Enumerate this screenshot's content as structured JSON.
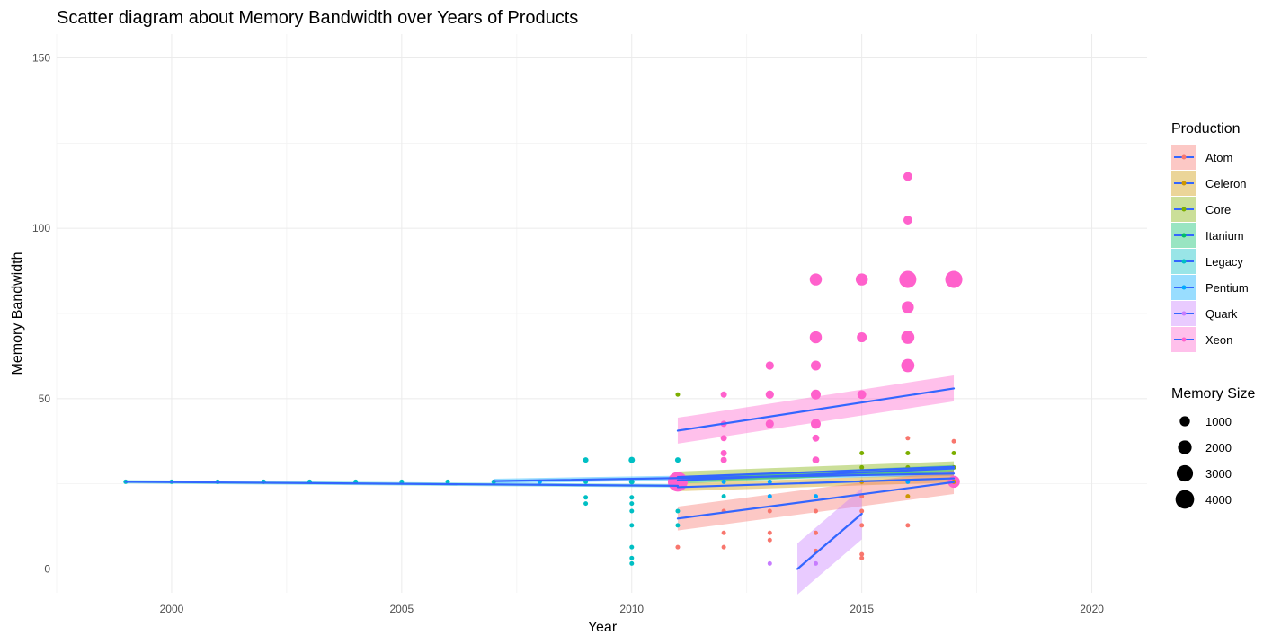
{
  "chart_data": {
    "type": "scatter",
    "title": "Scatter diagram about Memory Bandwidth over Years of Products",
    "xlabel": "Year",
    "ylabel": "Memory Bandwidth",
    "xlim": [
      1997.5,
      2021.2
    ],
    "ylim": [
      -7,
      157
    ],
    "x_ticks": [
      2000,
      2005,
      2010,
      2015,
      2020
    ],
    "y_ticks": [
      0,
      50,
      100,
      150
    ],
    "grid": true,
    "legend_placement": "right",
    "color_legend": {
      "title": "Production",
      "entries": [
        {
          "name": "Atom",
          "color": "#F8766D"
        },
        {
          "name": "Celeron",
          "color": "#CD9600"
        },
        {
          "name": "Core",
          "color": "#7CAE00"
        },
        {
          "name": "Itanium",
          "color": "#00BE67"
        },
        {
          "name": "Legacy",
          "color": "#00BFC4"
        },
        {
          "name": "Pentium",
          "color": "#00A9FF"
        },
        {
          "name": "Quark",
          "color": "#C77CFF"
        },
        {
          "name": "Xeon",
          "color": "#FF61CC"
        }
      ],
      "line_color": "#3366FF"
    },
    "size_legend": {
      "title": "Memory Size",
      "entries": [
        {
          "label": "1000",
          "value": 1000
        },
        {
          "label": "2000",
          "value": 2000
        },
        {
          "label": "3000",
          "value": 3000
        },
        {
          "label": "4000",
          "value": 4000
        }
      ]
    },
    "points": [
      {
        "series": "Legacy",
        "x": 1999,
        "y": 25.6,
        "size": 100
      },
      {
        "series": "Legacy",
        "x": 2000,
        "y": 25.6,
        "size": 100
      },
      {
        "series": "Legacy",
        "x": 2001,
        "y": 25.6,
        "size": 100
      },
      {
        "series": "Legacy",
        "x": 2002,
        "y": 25.6,
        "size": 100
      },
      {
        "series": "Legacy",
        "x": 2003,
        "y": 25.6,
        "size": 100
      },
      {
        "series": "Legacy",
        "x": 2004,
        "y": 25.6,
        "size": 100
      },
      {
        "series": "Legacy",
        "x": 2005,
        "y": 25.6,
        "size": 100
      },
      {
        "series": "Legacy",
        "x": 2006,
        "y": 25.6,
        "size": 100
      },
      {
        "series": "Legacy",
        "x": 2007,
        "y": 25.6,
        "size": 100
      },
      {
        "series": "Pentium",
        "x": 2008,
        "y": 25.6,
        "size": 100
      },
      {
        "series": "Legacy",
        "x": 2009,
        "y": 32,
        "size": 300
      },
      {
        "series": "Legacy",
        "x": 2009,
        "y": 25.6,
        "size": 150
      },
      {
        "series": "Legacy",
        "x": 2009,
        "y": 21,
        "size": 120
      },
      {
        "series": "Legacy",
        "x": 2009,
        "y": 19.2,
        "size": 200
      },
      {
        "series": "Legacy",
        "x": 2010,
        "y": 32,
        "size": 400
      },
      {
        "series": "Legacy",
        "x": 2010,
        "y": 25.6,
        "size": 300
      },
      {
        "series": "Legacy",
        "x": 2010,
        "y": 21,
        "size": 150
      },
      {
        "series": "Legacy",
        "x": 2010,
        "y": 19.2,
        "size": 150
      },
      {
        "series": "Legacy",
        "x": 2010,
        "y": 17,
        "size": 120
      },
      {
        "series": "Legacy",
        "x": 2010,
        "y": 12.8,
        "size": 100
      },
      {
        "series": "Legacy",
        "x": 2010,
        "y": 6.4,
        "size": 80
      },
      {
        "series": "Legacy",
        "x": 2010,
        "y": 3.2,
        "size": 80
      },
      {
        "series": "Legacy",
        "x": 2010,
        "y": 1.6,
        "size": 80
      },
      {
        "series": "Core",
        "x": 2011,
        "y": 51.2,
        "size": 200
      },
      {
        "series": "Legacy",
        "x": 2011,
        "y": 32,
        "size": 300
      },
      {
        "series": "Xeon",
        "x": 2011,
        "y": 25.6,
        "size": 4000
      },
      {
        "series": "Legacy",
        "x": 2011,
        "y": 17,
        "size": 100
      },
      {
        "series": "Legacy",
        "x": 2011,
        "y": 12.8,
        "size": 100
      },
      {
        "series": "Atom",
        "x": 2011,
        "y": 6.4,
        "size": 80
      },
      {
        "series": "Xeon",
        "x": 2012,
        "y": 51.2,
        "size": 400
      },
      {
        "series": "Xeon",
        "x": 2012,
        "y": 42.6,
        "size": 400
      },
      {
        "series": "Xeon",
        "x": 2012,
        "y": 38.4,
        "size": 400
      },
      {
        "series": "Xeon",
        "x": 2012,
        "y": 34,
        "size": 400
      },
      {
        "series": "Xeon",
        "x": 2012,
        "y": 32,
        "size": 400
      },
      {
        "series": "Pentium",
        "x": 2012,
        "y": 25.6,
        "size": 150
      },
      {
        "series": "Legacy",
        "x": 2012,
        "y": 21.3,
        "size": 150
      },
      {
        "series": "Atom",
        "x": 2012,
        "y": 17,
        "size": 80
      },
      {
        "series": "Atom",
        "x": 2012,
        "y": 10.6,
        "size": 80
      },
      {
        "series": "Atom",
        "x": 2012,
        "y": 6.4,
        "size": 80
      },
      {
        "series": "Xeon",
        "x": 2013,
        "y": 59.7,
        "size": 700
      },
      {
        "series": "Xeon",
        "x": 2013,
        "y": 51.2,
        "size": 700
      },
      {
        "series": "Xeon",
        "x": 2013,
        "y": 42.6,
        "size": 700
      },
      {
        "series": "Pentium",
        "x": 2013,
        "y": 25.6,
        "size": 150
      },
      {
        "series": "Pentium",
        "x": 2013,
        "y": 21.3,
        "size": 150
      },
      {
        "series": "Atom",
        "x": 2013,
        "y": 17,
        "size": 80
      },
      {
        "series": "Atom",
        "x": 2013,
        "y": 10.6,
        "size": 80
      },
      {
        "series": "Atom",
        "x": 2013,
        "y": 8.5,
        "size": 80
      },
      {
        "series": "Quark",
        "x": 2013,
        "y": 1.6,
        "size": 60
      },
      {
        "series": "Xeon",
        "x": 2014,
        "y": 85,
        "size": 1500
      },
      {
        "series": "Xeon",
        "x": 2014,
        "y": 68,
        "size": 1500
      },
      {
        "series": "Xeon",
        "x": 2014,
        "y": 59.7,
        "size": 1000
      },
      {
        "series": "Xeon",
        "x": 2014,
        "y": 51.2,
        "size": 1000
      },
      {
        "series": "Xeon",
        "x": 2014,
        "y": 42.6,
        "size": 1000
      },
      {
        "series": "Xeon",
        "x": 2014,
        "y": 38.4,
        "size": 500
      },
      {
        "series": "Xeon",
        "x": 2014,
        "y": 32,
        "size": 500
      },
      {
        "series": "Pentium",
        "x": 2014,
        "y": 21.3,
        "size": 100
      },
      {
        "series": "Atom",
        "x": 2014,
        "y": 17,
        "size": 80
      },
      {
        "series": "Atom",
        "x": 2014,
        "y": 10.6,
        "size": 80
      },
      {
        "series": "Atom",
        "x": 2014,
        "y": 5.3,
        "size": 80
      },
      {
        "series": "Quark",
        "x": 2014,
        "y": 1.6,
        "size": 60
      },
      {
        "series": "Xeon",
        "x": 2015,
        "y": 85,
        "size": 1500
      },
      {
        "series": "Xeon",
        "x": 2015,
        "y": 68,
        "size": 1000
      },
      {
        "series": "Xeon",
        "x": 2015,
        "y": 51.2,
        "size": 800
      },
      {
        "series": "Core",
        "x": 2015,
        "y": 34,
        "size": 200
      },
      {
        "series": "Core",
        "x": 2015,
        "y": 29.8,
        "size": 150
      },
      {
        "series": "Celeron",
        "x": 2015,
        "y": 25.6,
        "size": 120
      },
      {
        "series": "Atom",
        "x": 2015,
        "y": 21.3,
        "size": 80
      },
      {
        "series": "Atom",
        "x": 2015,
        "y": 17,
        "size": 80
      },
      {
        "series": "Atom",
        "x": 2015,
        "y": 12.8,
        "size": 80
      },
      {
        "series": "Atom",
        "x": 2015,
        "y": 4.3,
        "size": 80
      },
      {
        "series": "Atom",
        "x": 2015,
        "y": 3.2,
        "size": 80
      },
      {
        "series": "Xeon",
        "x": 2016,
        "y": 115.2,
        "size": 800
      },
      {
        "series": "Xeon",
        "x": 2016,
        "y": 102.4,
        "size": 800
      },
      {
        "series": "Xeon",
        "x": 2016,
        "y": 85,
        "size": 3000
      },
      {
        "series": "Xeon",
        "x": 2016,
        "y": 76.8,
        "size": 1500
      },
      {
        "series": "Xeon",
        "x": 2016,
        "y": 68,
        "size": 1800
      },
      {
        "series": "Xeon",
        "x": 2016,
        "y": 59.7,
        "size": 1800
      },
      {
        "series": "Atom",
        "x": 2016,
        "y": 38.4,
        "size": 60
      },
      {
        "series": "Core",
        "x": 2016,
        "y": 34,
        "size": 200
      },
      {
        "series": "Core",
        "x": 2016,
        "y": 29.8,
        "size": 150
      },
      {
        "series": "Pentium",
        "x": 2016,
        "y": 25.6,
        "size": 150
      },
      {
        "series": "Celeron",
        "x": 2016,
        "y": 21.3,
        "size": 80
      },
      {
        "series": "Atom",
        "x": 2016,
        "y": 12.8,
        "size": 60
      },
      {
        "series": "Xeon",
        "x": 2017,
        "y": 85,
        "size": 3000
      },
      {
        "series": "Atom",
        "x": 2017,
        "y": 37.5,
        "size": 100
      },
      {
        "series": "Core",
        "x": 2017,
        "y": 34,
        "size": 200
      },
      {
        "series": "Core",
        "x": 2017,
        "y": 29.8,
        "size": 150
      },
      {
        "series": "Xeon",
        "x": 2017,
        "y": 25.6,
        "size": 1500
      },
      {
        "series": "Celeron",
        "x": 2017,
        "y": 25.6,
        "size": 120
      }
    ],
    "trend_lines": [
      {
        "series": "Legacy",
        "x0": 1999,
        "y0": 25.6,
        "x1": 2011,
        "y1": 24.4,
        "ci": 0.5
      },
      {
        "series": "Pentium",
        "x0": 2007,
        "y0": 25.8,
        "x1": 2017,
        "y1": 28.0,
        "ci": 0.7
      },
      {
        "series": "Celeron",
        "x0": 2011,
        "y0": 24.0,
        "x1": 2017,
        "y1": 26.6,
        "ci": 1.2
      },
      {
        "series": "Core",
        "x0": 2011,
        "y0": 27.0,
        "x1": 2017,
        "y1": 30.0,
        "ci": 1.6
      },
      {
        "series": "Itanium",
        "x0": 2011,
        "y0": 26.0,
        "x1": 2017,
        "y1": 29.5,
        "ci": 1.0
      },
      {
        "series": "Atom",
        "x0": 2011,
        "y0": 14.8,
        "x1": 2017,
        "y1": 25.5,
        "ci": 3.5
      },
      {
        "series": "Quark",
        "x0": 2013.6,
        "y0": 0,
        "x1": 2015,
        "y1": 16.2,
        "ci": 7.5
      },
      {
        "series": "Xeon",
        "x0": 2011,
        "y0": 40.6,
        "x1": 2017,
        "y1": 53.0,
        "ci": 3.8
      }
    ]
  }
}
